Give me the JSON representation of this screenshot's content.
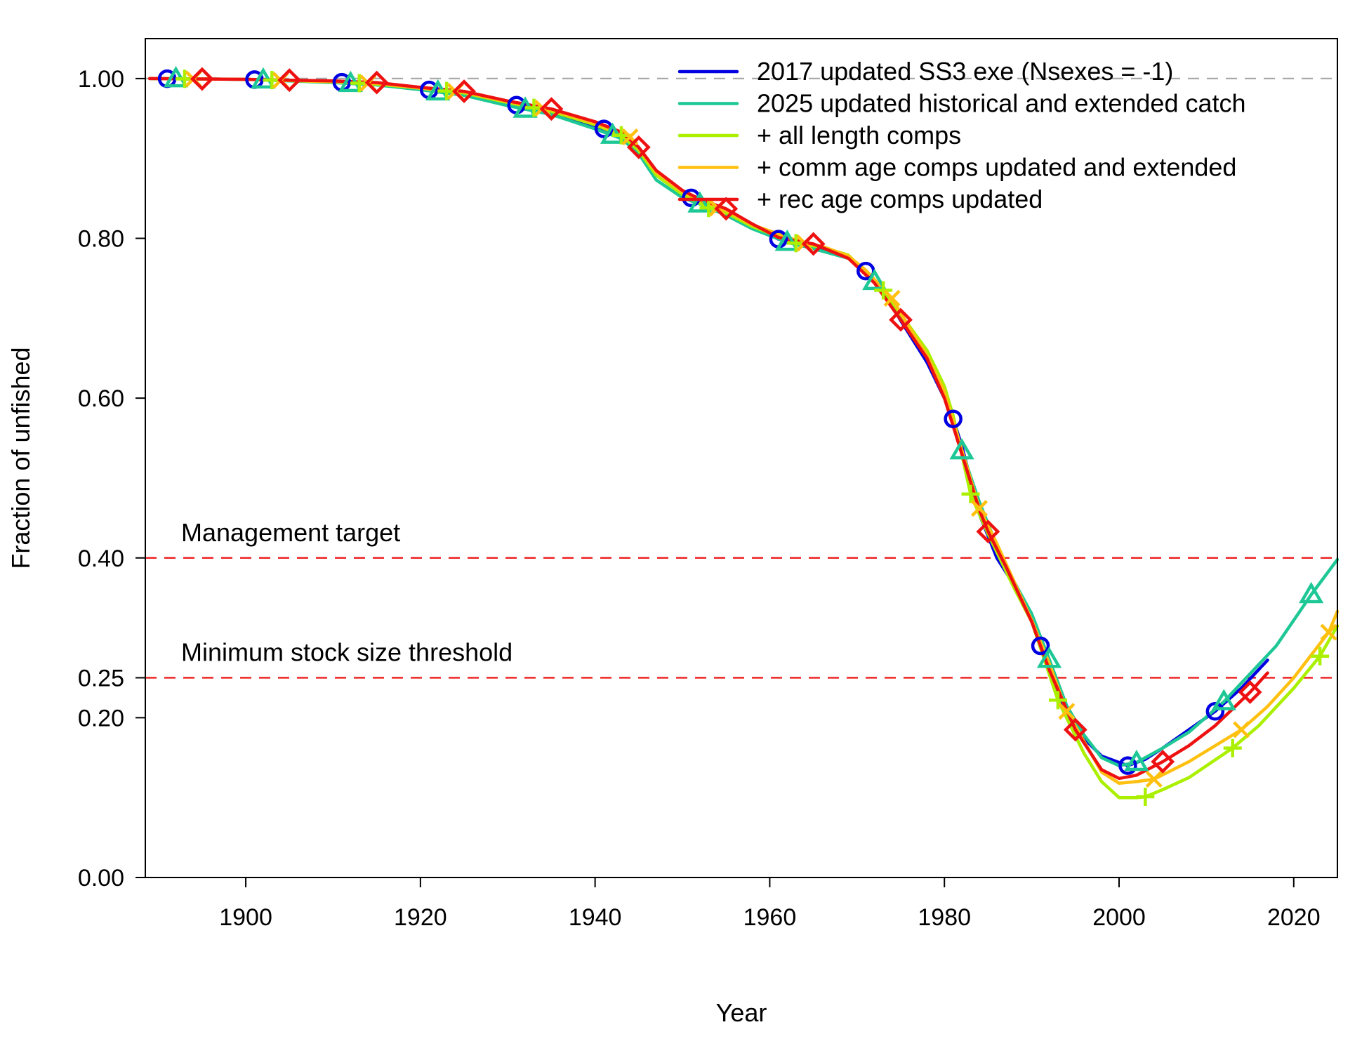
{
  "chart_data": {
    "type": "line",
    "xlabel": "Year",
    "ylabel": "Fraction of unfished",
    "xlim": [
      1888.5,
      2025
    ],
    "ylim": [
      0,
      1.05
    ],
    "x_ticks": [
      1900,
      1920,
      1940,
      1960,
      1980,
      2000,
      2020
    ],
    "y_ticks": [
      {
        "value": 0.0,
        "label": "0.00"
      },
      {
        "value": 0.2,
        "label": "0.20"
      },
      {
        "value": 0.25,
        "label": "0.25"
      },
      {
        "value": 0.4,
        "label": "0.40"
      },
      {
        "value": 0.6,
        "label": "0.60"
      },
      {
        "value": 0.8,
        "label": "0.80"
      },
      {
        "value": 1.0,
        "label": "1.00"
      }
    ],
    "grid": false,
    "legend_position": "top-right",
    "reference_lines": [
      {
        "y": 1.0,
        "color": "#aaaaaa",
        "label": ""
      },
      {
        "y": 0.4,
        "color": "#ee1111",
        "label": "Management target"
      },
      {
        "y": 0.25,
        "color": "#ee1111",
        "label": "Minimum stock size threshold"
      }
    ],
    "series": [
      {
        "name": "2017 updated SS3 exe (Nsexes = -1)",
        "color": "#0000e0",
        "marker": "circle",
        "marker_years": [
          1891,
          1901,
          1911,
          1921,
          1931,
          1941,
          1951,
          1961,
          1971,
          1981,
          1991,
          2001,
          2011
        ],
        "points": [
          [
            1889,
            1.0
          ],
          [
            1900,
            0.999
          ],
          [
            1910,
            0.996
          ],
          [
            1915,
            0.993
          ],
          [
            1920,
            0.987
          ],
          [
            1925,
            0.981
          ],
          [
            1930,
            0.969
          ],
          [
            1935,
            0.958
          ],
          [
            1940,
            0.941
          ],
          [
            1943,
            0.929
          ],
          [
            1945,
            0.911
          ],
          [
            1947,
            0.88
          ],
          [
            1950,
            0.856
          ],
          [
            1953,
            0.84
          ],
          [
            1955,
            0.833
          ],
          [
            1958,
            0.815
          ],
          [
            1961,
            0.799
          ],
          [
            1965,
            0.79
          ],
          [
            1969,
            0.777
          ],
          [
            1971,
            0.759
          ],
          [
            1973,
            0.734
          ],
          [
            1975,
            0.697
          ],
          [
            1978,
            0.645
          ],
          [
            1980,
            0.6
          ],
          [
            1981,
            0.574
          ],
          [
            1982,
            0.54
          ],
          [
            1984,
            0.455
          ],
          [
            1986,
            0.4
          ],
          [
            1988,
            0.366
          ],
          [
            1990,
            0.32
          ],
          [
            1991,
            0.29
          ],
          [
            1993,
            0.23
          ],
          [
            1995,
            0.185
          ],
          [
            1998,
            0.152
          ],
          [
            2001,
            0.14
          ],
          [
            2003,
            0.148
          ],
          [
            2005,
            0.162
          ],
          [
            2008,
            0.185
          ],
          [
            2011,
            0.208
          ],
          [
            2014,
            0.237
          ],
          [
            2017,
            0.272
          ]
        ]
      },
      {
        "name": "2025 updated historical and extended catch",
        "color": "#1ec896",
        "marker": "triangle",
        "marker_years": [
          1892,
          1902,
          1912,
          1922,
          1932,
          1942,
          1952,
          1962,
          1972,
          1982,
          1992,
          2002,
          2012,
          2022
        ],
        "points": [
          [
            1889,
            1.0
          ],
          [
            1900,
            0.999
          ],
          [
            1910,
            0.995
          ],
          [
            1915,
            0.992
          ],
          [
            1920,
            0.986
          ],
          [
            1925,
            0.979
          ],
          [
            1930,
            0.966
          ],
          [
            1935,
            0.955
          ],
          [
            1940,
            0.937
          ],
          [
            1943,
            0.925
          ],
          [
            1945,
            0.906
          ],
          [
            1947,
            0.873
          ],
          [
            1950,
            0.851
          ],
          [
            1952,
            0.843
          ],
          [
            1955,
            0.829
          ],
          [
            1958,
            0.812
          ],
          [
            1962,
            0.795
          ],
          [
            1965,
            0.787
          ],
          [
            1969,
            0.775
          ],
          [
            1972,
            0.746
          ],
          [
            1974,
            0.716
          ],
          [
            1976,
            0.688
          ],
          [
            1978,
            0.652
          ],
          [
            1980,
            0.605
          ],
          [
            1982,
            0.534
          ],
          [
            1984,
            0.47
          ],
          [
            1986,
            0.415
          ],
          [
            1988,
            0.37
          ],
          [
            1990,
            0.33
          ],
          [
            1992,
            0.273
          ],
          [
            1994,
            0.215
          ],
          [
            1996,
            0.178
          ],
          [
            1998,
            0.15
          ],
          [
            2000,
            0.14
          ],
          [
            2002,
            0.144
          ],
          [
            2005,
            0.162
          ],
          [
            2008,
            0.182
          ],
          [
            2012,
            0.22
          ],
          [
            2015,
            0.255
          ],
          [
            2018,
            0.29
          ],
          [
            2022,
            0.354
          ],
          [
            2025,
            0.398
          ]
        ]
      },
      {
        "name": "+ all length comps",
        "color": "#aaf000",
        "marker": "plus",
        "marker_years": [
          1893,
          1903,
          1913,
          1923,
          1933,
          1943,
          1953,
          1963,
          1973,
          1983,
          1993,
          2003,
          2013,
          2023
        ],
        "points": [
          [
            1889,
            1.0
          ],
          [
            1900,
            0.999
          ],
          [
            1910,
            0.996
          ],
          [
            1915,
            0.993
          ],
          [
            1920,
            0.988
          ],
          [
            1925,
            0.982
          ],
          [
            1930,
            0.97
          ],
          [
            1935,
            0.959
          ],
          [
            1940,
            0.942
          ],
          [
            1943,
            0.929
          ],
          [
            1945,
            0.91
          ],
          [
            1947,
            0.879
          ],
          [
            1950,
            0.855
          ],
          [
            1953,
            0.838
          ],
          [
            1955,
            0.832
          ],
          [
            1958,
            0.815
          ],
          [
            1963,
            0.794
          ],
          [
            1966,
            0.789
          ],
          [
            1969,
            0.779
          ],
          [
            1973,
            0.735
          ],
          [
            1975,
            0.705
          ],
          [
            1978,
            0.66
          ],
          [
            1980,
            0.615
          ],
          [
            1981,
            0.578
          ],
          [
            1983,
            0.48
          ],
          [
            1985,
            0.43
          ],
          [
            1988,
            0.362
          ],
          [
            1990,
            0.32
          ],
          [
            1993,
            0.222
          ],
          [
            1996,
            0.155
          ],
          [
            1998,
            0.12
          ],
          [
            2000,
            0.1
          ],
          [
            2002,
            0.1
          ],
          [
            2003,
            0.101
          ],
          [
            2005,
            0.11
          ],
          [
            2008,
            0.125
          ],
          [
            2013,
            0.162
          ],
          [
            2016,
            0.19
          ],
          [
            2020,
            0.237
          ],
          [
            2023,
            0.277
          ],
          [
            2025,
            0.315
          ]
        ]
      },
      {
        "name": "+ comm age comps updated and extended",
        "color": "#ffc010",
        "marker": "x",
        "marker_years": [
          1894,
          1904,
          1914,
          1924,
          1934,
          1944,
          1954,
          1964,
          1974,
          1984,
          1994,
          2004,
          2014,
          2024
        ],
        "points": [
          [
            1889,
            1.0
          ],
          [
            1900,
            0.999
          ],
          [
            1910,
            0.996
          ],
          [
            1915,
            0.994
          ],
          [
            1920,
            0.988
          ],
          [
            1925,
            0.983
          ],
          [
            1930,
            0.971
          ],
          [
            1935,
            0.961
          ],
          [
            1940,
            0.944
          ],
          [
            1944,
            0.927
          ],
          [
            1945,
            0.913
          ],
          [
            1947,
            0.883
          ],
          [
            1950,
            0.858
          ],
          [
            1954,
            0.838
          ],
          [
            1955,
            0.835
          ],
          [
            1958,
            0.817
          ],
          [
            1964,
            0.794
          ],
          [
            1966,
            0.79
          ],
          [
            1969,
            0.778
          ],
          [
            1971,
            0.76
          ],
          [
            1974,
            0.725
          ],
          [
            1976,
            0.688
          ],
          [
            1978,
            0.654
          ],
          [
            1980,
            0.608
          ],
          [
            1982,
            0.535
          ],
          [
            1984,
            0.462
          ],
          [
            1986,
            0.418
          ],
          [
            1988,
            0.37
          ],
          [
            1990,
            0.322
          ],
          [
            1992,
            0.268
          ],
          [
            1994,
            0.208
          ],
          [
            1996,
            0.17
          ],
          [
            1998,
            0.132
          ],
          [
            2000,
            0.118
          ],
          [
            2002,
            0.12
          ],
          [
            2004,
            0.123
          ],
          [
            2008,
            0.145
          ],
          [
            2014,
            0.185
          ],
          [
            2017,
            0.214
          ],
          [
            2020,
            0.25
          ],
          [
            2024,
            0.307
          ],
          [
            2025,
            0.333
          ]
        ]
      },
      {
        "name": "+ rec age comps updated",
        "color": "#ee1111",
        "marker": "diamond",
        "marker_years": [
          1895,
          1905,
          1915,
          1925,
          1935,
          1945,
          1955,
          1965,
          1975,
          1985,
          1995,
          2005,
          2015
        ],
        "points": [
          [
            1889,
            1.0
          ],
          [
            1900,
            0.999
          ],
          [
            1905,
            0.998
          ],
          [
            1910,
            0.997
          ],
          [
            1915,
            0.995
          ],
          [
            1920,
            0.989
          ],
          [
            1925,
            0.984
          ],
          [
            1930,
            0.972
          ],
          [
            1935,
            0.962
          ],
          [
            1940,
            0.946
          ],
          [
            1943,
            0.933
          ],
          [
            1945,
            0.914
          ],
          [
            1947,
            0.885
          ],
          [
            1950,
            0.86
          ],
          [
            1952,
            0.849
          ],
          [
            1955,
            0.837
          ],
          [
            1958,
            0.818
          ],
          [
            1961,
            0.801
          ],
          [
            1965,
            0.793
          ],
          [
            1969,
            0.775
          ],
          [
            1972,
            0.744
          ],
          [
            1975,
            0.698
          ],
          [
            1978,
            0.65
          ],
          [
            1980,
            0.6
          ],
          [
            1982,
            0.53
          ],
          [
            1984,
            0.46
          ],
          [
            1985,
            0.433
          ],
          [
            1987,
            0.39
          ],
          [
            1990,
            0.32
          ],
          [
            1992,
            0.26
          ],
          [
            1994,
            0.21
          ],
          [
            1995,
            0.185
          ],
          [
            1998,
            0.135
          ],
          [
            2000,
            0.124
          ],
          [
            2002,
            0.128
          ],
          [
            2005,
            0.145
          ],
          [
            2008,
            0.165
          ],
          [
            2011,
            0.19
          ],
          [
            2015,
            0.232
          ],
          [
            2017,
            0.256
          ]
        ]
      }
    ]
  }
}
